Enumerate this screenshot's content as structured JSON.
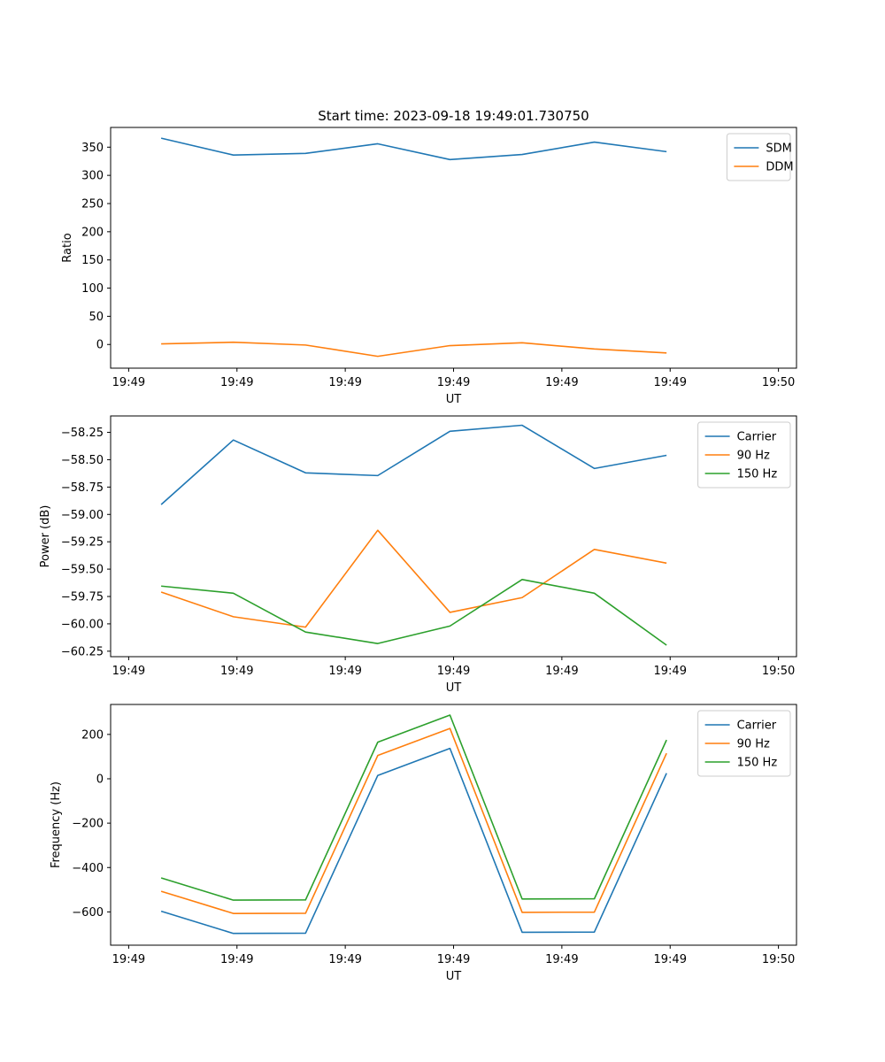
{
  "figure": {
    "title": "Start time: 2023-09-18 19:49:01.730750"
  },
  "chart_data": [
    {
      "type": "line",
      "xlabel": "UT",
      "ylabel": "Ratio",
      "x": [
        1,
        2,
        3,
        4,
        5,
        6,
        7,
        8
      ],
      "xlim": [
        0.3,
        9.8
      ],
      "xticks": [
        0.55,
        2.05,
        3.55,
        5.05,
        6.55,
        8.05,
        9.55
      ],
      "xtick_labels": [
        "19:49",
        "19:49",
        "19:49",
        "19:49",
        "19:49",
        "19:49",
        "19:50"
      ],
      "ylim": [
        -42,
        385
      ],
      "yticks": [
        0,
        50,
        100,
        150,
        200,
        250,
        300,
        350
      ],
      "ytick_labels": [
        "0",
        "50",
        "100",
        "150",
        "200",
        "250",
        "300",
        "350"
      ],
      "legend": "top-right",
      "series": [
        {
          "name": "SDM",
          "color": "#1f77b4",
          "values": [
            366,
            336,
            339,
            356,
            328,
            337,
            359,
            342
          ]
        },
        {
          "name": "DDM",
          "color": "#ff7f0e",
          "values": [
            1,
            4,
            -1,
            -21,
            -2,
            3,
            -8,
            -15
          ]
        }
      ]
    },
    {
      "type": "line",
      "xlabel": "UT",
      "ylabel": "Power (dB)",
      "x": [
        1,
        2,
        3,
        4,
        5,
        6,
        7,
        8
      ],
      "xlim": [
        0.3,
        9.8
      ],
      "xticks": [
        0.55,
        2.05,
        3.55,
        5.05,
        6.55,
        8.05,
        9.55
      ],
      "xtick_labels": [
        "19:49",
        "19:49",
        "19:49",
        "19:49",
        "19:49",
        "19:49",
        "19:50"
      ],
      "ylim": [
        -60.3,
        -58.1
      ],
      "yticks": [
        -58.25,
        -58.5,
        -58.75,
        -59.0,
        -59.25,
        -59.5,
        -59.75,
        -60.0,
        -60.25
      ],
      "ytick_labels": [
        "−58.25",
        "−58.50",
        "−58.75",
        "−59.00",
        "−59.25",
        "−59.50",
        "−59.75",
        "−60.00",
        "−60.25"
      ],
      "legend": "top-right",
      "series": [
        {
          "name": "Carrier",
          "color": "#1f77b4",
          "values": [
            -58.91,
            -58.32,
            -58.62,
            -58.645,
            -58.24,
            -58.185,
            -58.58,
            -58.46
          ]
        },
        {
          "name": "90 Hz",
          "color": "#ff7f0e",
          "values": [
            -59.71,
            -59.935,
            -60.03,
            -59.145,
            -59.895,
            -59.76,
            -59.32,
            -59.445
          ]
        },
        {
          "name": "150 Hz",
          "color": "#2ca02c",
          "values": [
            -59.655,
            -59.72,
            -60.075,
            -60.18,
            -60.02,
            -59.595,
            -59.72,
            -60.195
          ]
        }
      ]
    },
    {
      "type": "line",
      "xlabel": "UT",
      "ylabel": "Frequency (Hz)",
      "x": [
        1,
        2,
        3,
        4,
        5,
        6,
        7,
        8
      ],
      "xlim": [
        0.3,
        9.8
      ],
      "xticks": [
        0.55,
        2.05,
        3.55,
        5.05,
        6.55,
        8.05,
        9.55
      ],
      "xtick_labels": [
        "19:49",
        "19:49",
        "19:49",
        "19:49",
        "19:49",
        "19:49",
        "19:50"
      ],
      "ylim": [
        -750,
        335
      ],
      "yticks": [
        -600,
        -400,
        -200,
        0,
        200
      ],
      "ytick_labels": [
        "−600",
        "−400",
        "−200",
        "0",
        "200"
      ],
      "legend": "top-right",
      "series": [
        {
          "name": "Carrier",
          "color": "#1f77b4",
          "values": [
            -597,
            -697,
            -696,
            15,
            137,
            -692,
            -691,
            25
          ]
        },
        {
          "name": "90 Hz",
          "color": "#ff7f0e",
          "values": [
            -507,
            -607,
            -606,
            105,
            227,
            -602,
            -601,
            115
          ]
        },
        {
          "name": "150 Hz",
          "color": "#2ca02c",
          "values": [
            -447,
            -547,
            -546,
            165,
            287,
            -542,
            -541,
            175
          ]
        }
      ]
    }
  ]
}
